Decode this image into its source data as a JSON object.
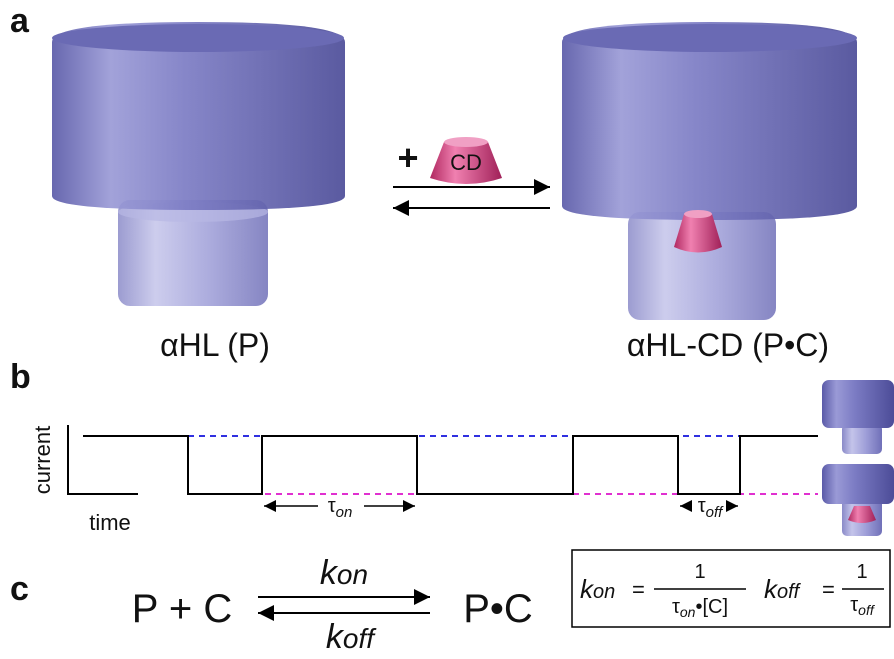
{
  "panel_a": {
    "label": "a",
    "plus": "+",
    "ligand": "CD",
    "left_caption": "αHL (P)",
    "right_caption": "αHL-CD (P•C)"
  },
  "panel_b": {
    "label": "b",
    "y_axis": "current",
    "x_axis": "time",
    "tau_on": {
      "symbol": "τ",
      "sub": "on"
    },
    "tau_off": {
      "symbol": "τ",
      "sub": "off"
    }
  },
  "panel_c": {
    "label": "c",
    "left": "P + C",
    "right": "P•C",
    "forward": {
      "symbol": "k",
      "sub": "on"
    },
    "backward": {
      "symbol": "k",
      "sub": "off"
    },
    "eq_on": {
      "symbol": "k",
      "sub": "on",
      "equals": "=",
      "numerator": "1",
      "den_symbol": "τ",
      "den_sub": "on",
      "den_rest": "•[C]"
    },
    "eq_off": {
      "symbol": "k",
      "sub": "off",
      "equals": "=",
      "numerator": "1",
      "den_symbol": "τ",
      "den_sub": "off"
    }
  }
}
